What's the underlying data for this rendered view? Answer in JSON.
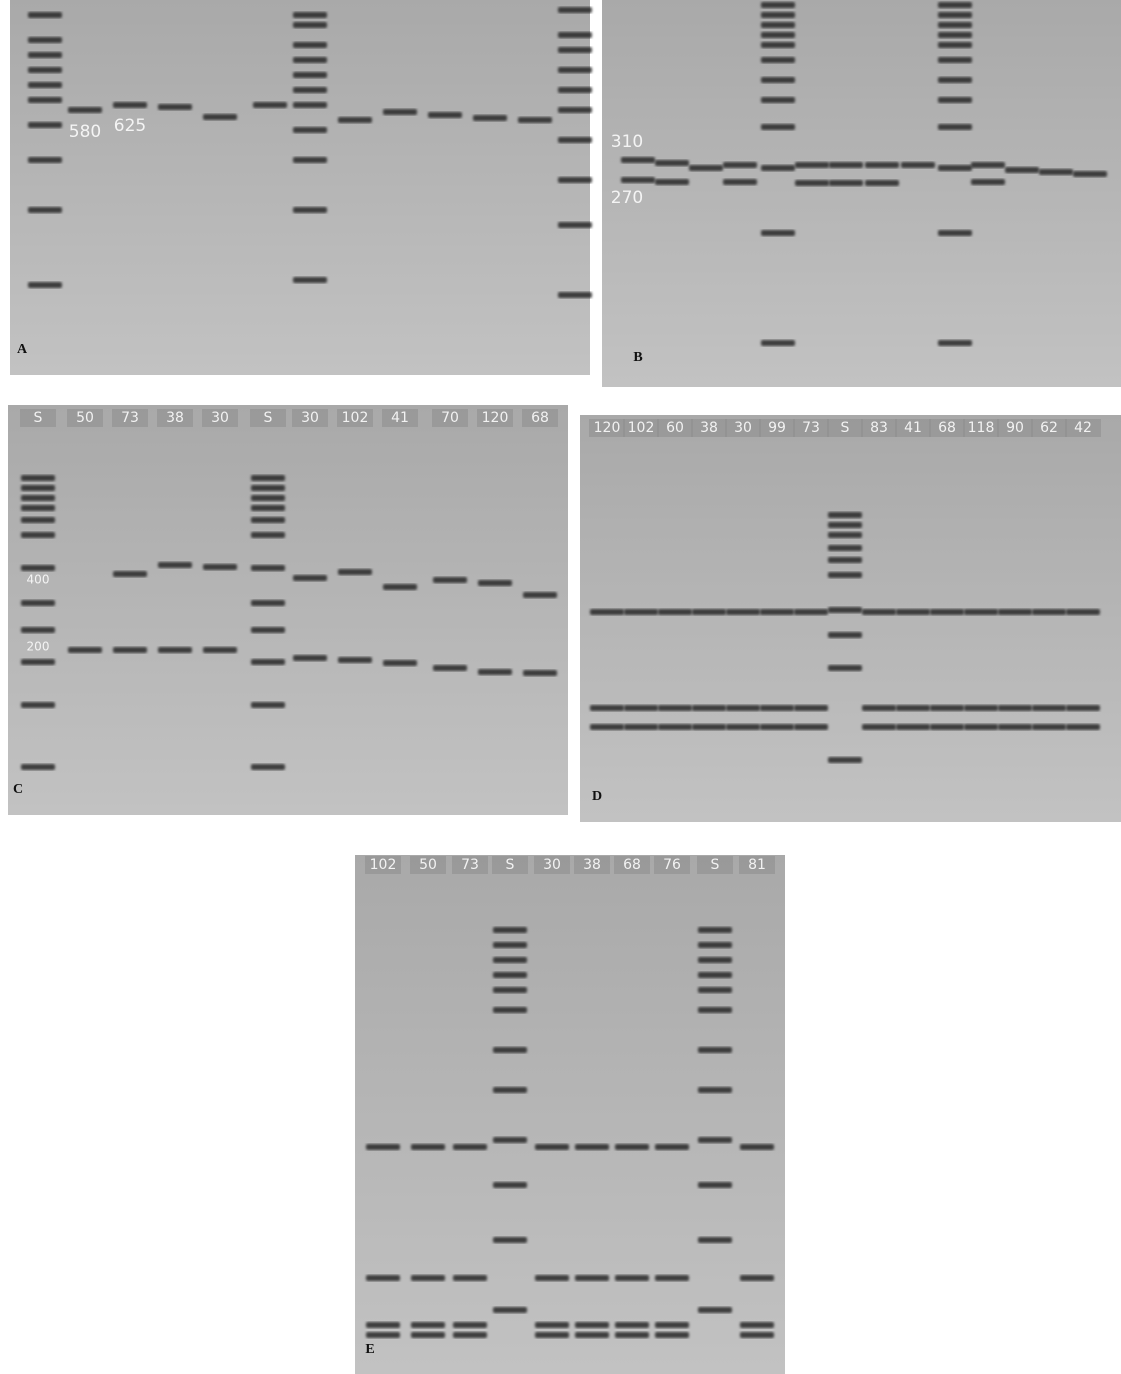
{
  "panels": [
    {
      "label": "A",
      "band_labels": [
        "580",
        "625"
      ]
    },
    {
      "label": "B",
      "band_labels": [
        "310",
        "270"
      ]
    },
    {
      "label": "C",
      "lanes": [
        "S",
        "50",
        "73",
        "38",
        "30",
        "S",
        "30",
        "102",
        "41",
        "70",
        "120",
        "68"
      ],
      "band_labels": [
        "400",
        "200"
      ]
    },
    {
      "label": "D",
      "lanes": [
        "120",
        "102",
        "60",
        "38",
        "30",
        "99",
        "73",
        "S",
        "83",
        "41",
        "68",
        "118",
        "90",
        "62",
        "42"
      ]
    },
    {
      "label": "E",
      "lanes": [
        "102",
        "50",
        "73",
        "S",
        "30",
        "38",
        "68",
        "76",
        "S",
        "81"
      ]
    }
  ]
}
